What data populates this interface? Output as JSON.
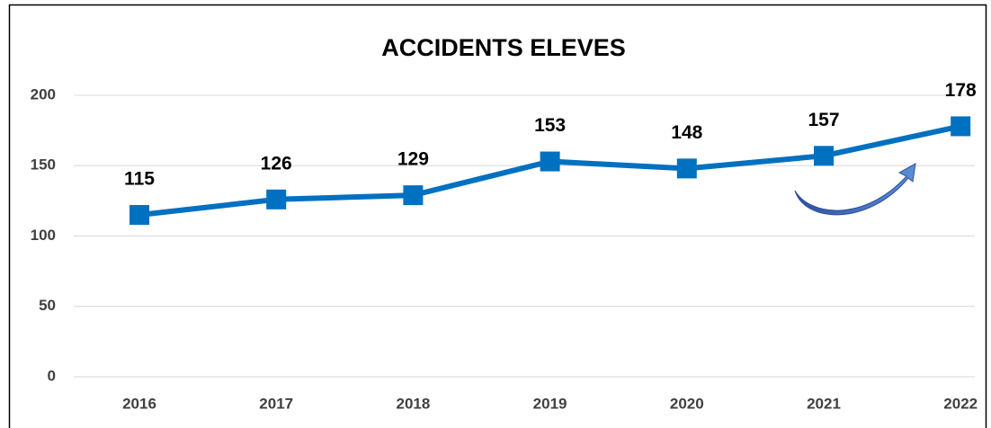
{
  "chart_data": {
    "type": "line",
    "title": "ACCIDENTS ELEVES",
    "categories": [
      "2016",
      "2017",
      "2018",
      "2019",
      "2020",
      "2021",
      "2022"
    ],
    "series": [
      {
        "name": "ACCIDENTS ELEVES",
        "color": "#0070c0",
        "values": [
          115,
          126,
          129,
          153,
          148,
          157,
          178
        ]
      }
    ],
    "ylim": [
      0,
      200
    ],
    "yticks": [
      0,
      50,
      100,
      150,
      200
    ],
    "grid": true
  }
}
